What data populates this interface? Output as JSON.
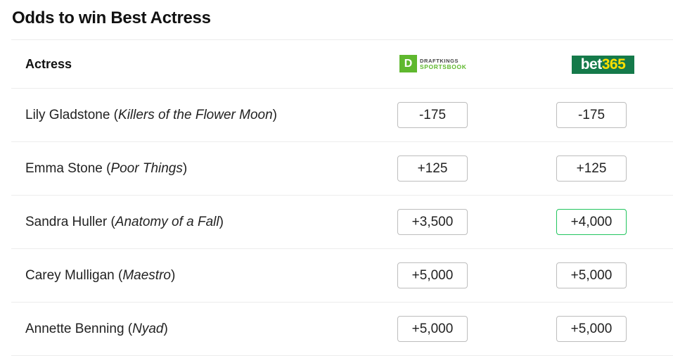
{
  "title": "Odds to win Best Actress",
  "header": {
    "column_label": "Actress",
    "sportsbooks": [
      {
        "name": "DraftKings Sportsbook",
        "logo_text_top": "DRAFTKINGS",
        "logo_text_bottom": "SPORTSBOOK",
        "color": "#5fb82e"
      },
      {
        "name": "bet365",
        "logo_text_white": "bet",
        "logo_text_yellow": "365",
        "color": "#157a4a"
      }
    ]
  },
  "rows": [
    {
      "actress": "Lily Gladstone",
      "film": "Killers of the Flower Moon",
      "draftkings": "-175",
      "bet365": "-175",
      "best": "none"
    },
    {
      "actress": "Emma Stone",
      "film": "Poor Things",
      "draftkings": "+125",
      "bet365": "+125",
      "best": "none"
    },
    {
      "actress": "Sandra Huller",
      "film": "Anatomy of a Fall",
      "draftkings": "+3,500",
      "bet365": "+4,000",
      "best": "bet365"
    },
    {
      "actress": "Carey Mulligan",
      "film": "Maestro",
      "draftkings": "+5,000",
      "bet365": "+5,000",
      "best": "none"
    },
    {
      "actress": "Annette Benning",
      "film": "Nyad",
      "draftkings": "+5,000",
      "bet365": "+5,000",
      "best": "none"
    }
  ],
  "colors": {
    "best_odds_border": "#22c55e"
  }
}
